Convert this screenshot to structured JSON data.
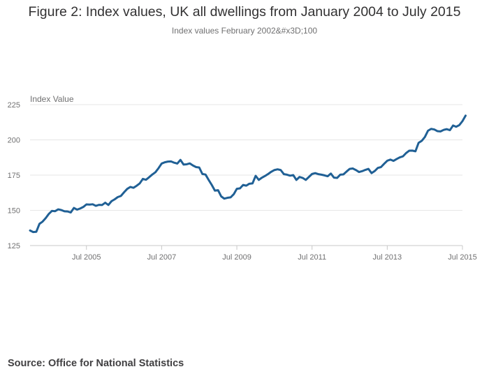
{
  "title": "Figure 2: Index values, UK all dwellings from January 2004 to July 2015",
  "subtitle": "Index values February 2002&#x3D;100",
  "source": "Source: Office for National Statistics",
  "chart_data": {
    "type": "line",
    "title": "Figure 2: Index values, UK all dwellings from January 2004 to July 2015",
    "subtitle": "Index values February 2002&#x3D;100",
    "xlabel": "",
    "ylabel": "Index Value",
    "x_start": "2004-01",
    "x_end": "2015-07",
    "ylim": [
      125,
      225
    ],
    "yticks": [
      125,
      150,
      175,
      200,
      225
    ],
    "xticks": [
      {
        "label": "Jul 2005",
        "date": "2005-07"
      },
      {
        "label": "Jul 2007",
        "date": "2007-07"
      },
      {
        "label": "Jul 2009",
        "date": "2009-07"
      },
      {
        "label": "Jul 2011",
        "date": "2011-07"
      },
      {
        "label": "Jul 2013",
        "date": "2013-07"
      },
      {
        "label": "Jul 2015",
        "date": "2015-07"
      }
    ],
    "grid": true,
    "legend": "none",
    "line_color": "#206095",
    "series": [
      {
        "values": [
          135.7,
          134.6,
          134.8,
          140.4,
          142.0,
          144.5,
          147.5,
          149.6,
          149.4,
          150.7,
          150.2,
          149.3,
          149.2,
          148.5,
          151.7,
          150.5,
          151.3,
          152.4,
          154.2,
          154.1,
          154.3,
          153.2,
          153.9,
          153.8,
          155.4,
          153.8,
          156.5,
          157.8,
          159.4,
          160.2,
          162.8,
          165.2,
          166.6,
          166.0,
          167.4,
          169.1,
          172.3,
          171.7,
          173.5,
          175.4,
          177.0,
          179.9,
          183.2,
          184.1,
          184.6,
          184.7,
          183.8,
          183.2,
          185.8,
          182.5,
          182.7,
          183.3,
          181.8,
          180.7,
          180.4,
          175.8,
          175.4,
          171.6,
          168.0,
          164.0,
          164.3,
          159.9,
          158.3,
          158.9,
          159.2,
          161.4,
          165.3,
          165.6,
          168.0,
          167.5,
          168.9,
          169.1,
          174.5,
          171.6,
          173.2,
          174.4,
          175.8,
          177.4,
          178.6,
          179.1,
          178.6,
          175.7,
          175.3,
          174.6,
          175.0,
          171.6,
          173.7,
          173.0,
          171.6,
          173.7,
          175.8,
          176.4,
          175.7,
          175.3,
          174.8,
          174.2,
          176.1,
          173.2,
          173.0,
          175.3,
          175.5,
          177.5,
          179.4,
          179.7,
          178.6,
          177.2,
          177.8,
          178.7,
          179.4,
          176.4,
          177.9,
          180.1,
          180.7,
          183.0,
          185.2,
          186.0,
          185.1,
          186.4,
          187.6,
          188.3,
          190.6,
          192.3,
          192.4,
          191.9,
          197.9,
          199.3,
          202.0,
          206.5,
          207.8,
          207.4,
          206.2,
          206.0,
          207.1,
          207.6,
          206.9,
          210.2,
          209.3,
          210.5,
          213.3,
          217.2
        ]
      }
    ]
  }
}
